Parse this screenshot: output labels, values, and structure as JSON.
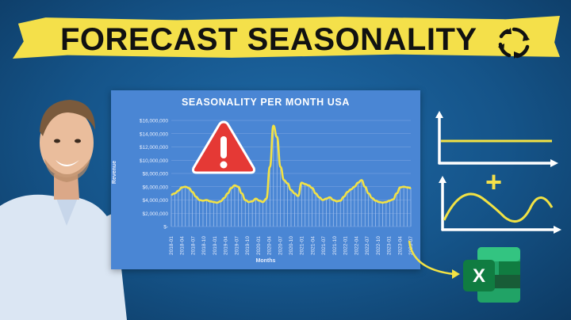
{
  "banner": {
    "title": "FORECAST SEASONALITY",
    "icon": "cycle-icon"
  },
  "colors": {
    "background": "#155489",
    "banner_yellow": "#f4e04a",
    "chart_panel": "#4a86d4",
    "line_yellow": "#f2e244",
    "warning_red": "#e53935",
    "excel_green": "#1d7a43"
  },
  "chart_data": {
    "type": "line",
    "title": "SEASONALITY PER MONTH USA",
    "xlabel": "Months",
    "ylabel": "Revenue",
    "ylim": [
      0,
      16000000
    ],
    "yticks": [
      "$-",
      "$2,000,000",
      "$4,000,000",
      "$6,000,000",
      "$8,000,000",
      "$10,000,000",
      "$12,000,000",
      "$14,000,000",
      "$16,000,000"
    ],
    "xticks": [
      "2018-01",
      "2018-04",
      "2018-07",
      "2018-10",
      "2019-01",
      "2019-04",
      "2019-07",
      "2019-10",
      "2020-01",
      "2020-04",
      "2020-07",
      "2020-10",
      "2021-01",
      "2021-04",
      "2021-07",
      "2021-10",
      "2022-01",
      "2022-04",
      "2022-07",
      "2022-10",
      "2023-01",
      "2023-04",
      "2023-07"
    ],
    "series": [
      {
        "values": [
          4800000,
          5000000,
          5400000,
          5900000,
          6000000,
          5800000,
          5200000,
          4500000,
          4000000,
          3900000,
          4000000,
          3800000,
          3700000,
          3600000,
          3800000,
          4300000,
          5000000,
          5800000,
          6200000,
          6000000,
          5000000,
          4000000,
          3700000,
          3800000,
          4200000,
          3900000,
          3700000,
          4200000,
          9000000,
          15200000,
          13500000,
          9000000,
          7000000,
          6500000,
          5500000,
          5000000,
          4600000,
          6600000,
          6400000,
          6200000,
          5800000,
          5000000,
          4400000,
          4000000,
          4200000,
          4400000,
          4000000,
          3800000,
          3900000,
          4500000,
          5200000,
          5600000,
          6000000,
          6600000,
          7000000,
          6000000,
          5000000,
          4300000,
          3900000,
          3700000,
          3600000,
          3700000,
          3900000,
          4100000,
          5000000,
          5900000,
          6000000,
          5900000,
          5800000
        ]
      }
    ],
    "grid": true,
    "legend": "none"
  },
  "annotations": {
    "warning_icon": "warning-triangle-icon",
    "plus_symbol": "+",
    "excel_icon": "excel-logo-icon"
  }
}
